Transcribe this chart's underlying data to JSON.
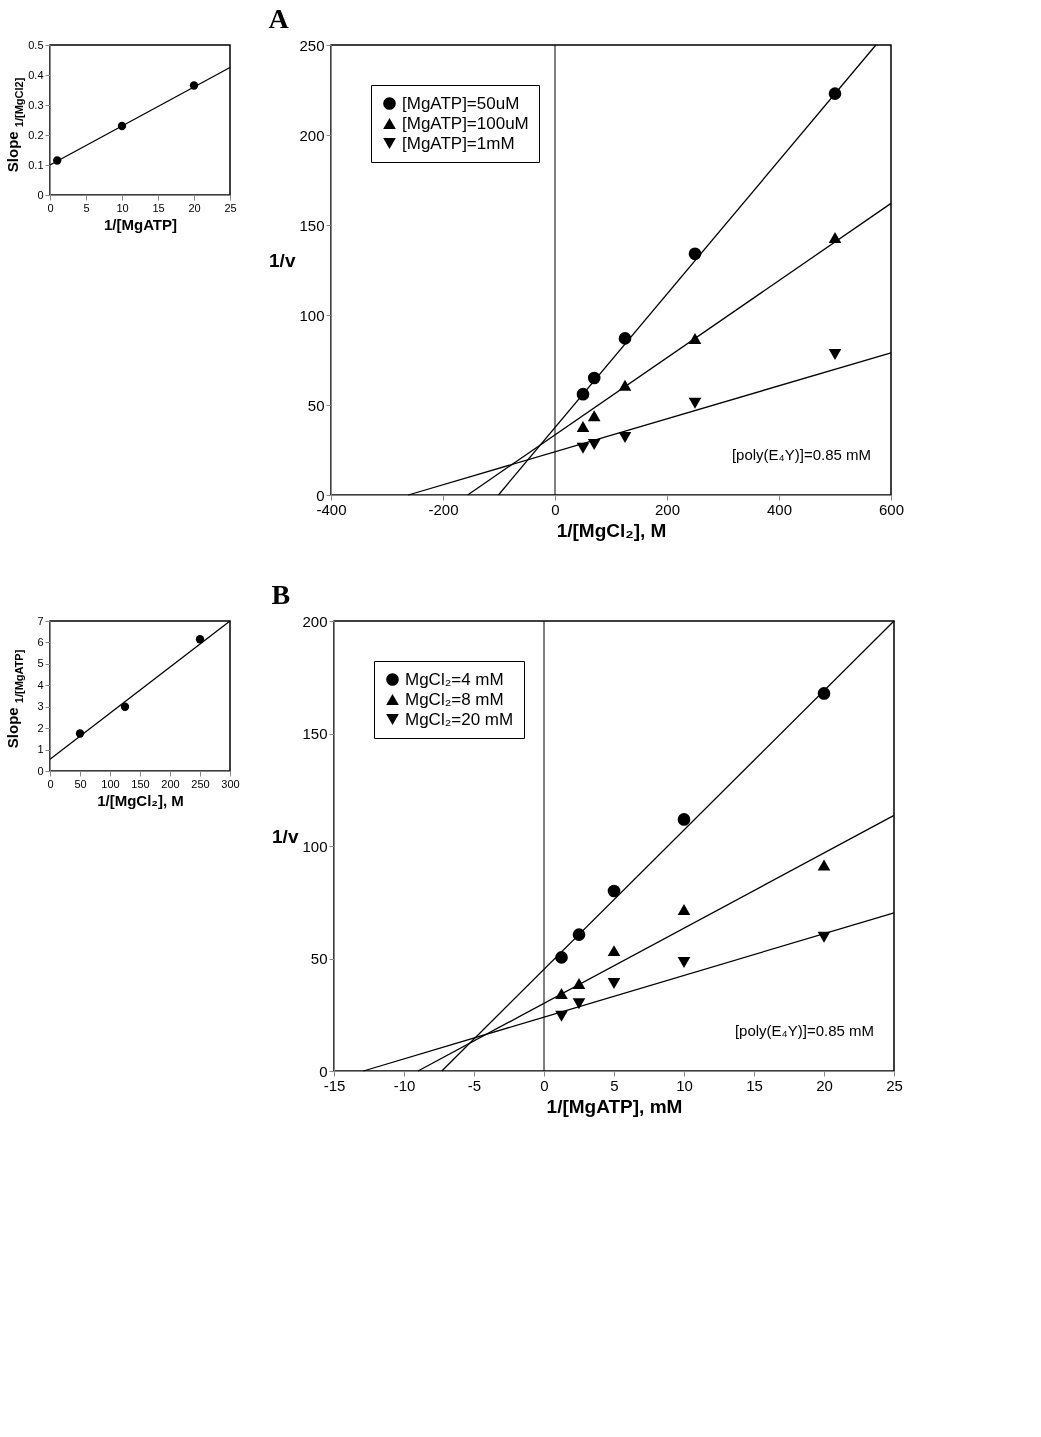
{
  "chart_data": [
    {
      "type": "scatter",
      "title": "A",
      "xlabel": "1/[MgCl₂], M",
      "ylabel": "1/v",
      "xlim": [
        -400,
        600
      ],
      "ylim": [
        0,
        250
      ],
      "xticks": [
        -400,
        -200,
        0,
        200,
        400,
        600
      ],
      "yticks": [
        0,
        50,
        100,
        150,
        200,
        250
      ],
      "grid": false,
      "legend": "top left",
      "series": [
        {
          "name": "[MgATP]=50uM",
          "color": "#000000",
          "marker": "circle",
          "x": [
            50,
            70,
            125,
            250,
            500
          ],
          "values": [
            56,
            65,
            87,
            134,
            223
          ]
        },
        {
          "name": "[MgATP]=100uM",
          "color": "#000000",
          "marker": "triangle",
          "x": [
            50,
            70,
            125,
            250,
            500
          ],
          "values": [
            38,
            44,
            61,
            87,
            143
          ]
        },
        {
          "name": "[MgATP]=1mM",
          "color": "#000000",
          "marker": "triangle-down",
          "x": [
            50,
            70,
            125,
            250,
            500
          ],
          "values": [
            26,
            28,
            32,
            51,
            78
          ]
        },
        {
          "type": "line",
          "color": "#000000",
          "x": [
            -101,
            573
          ],
          "values": [
            0,
            250
          ]
        },
        {
          "type": "line",
          "color": "#000000",
          "x": [
            -156,
            600
          ],
          "values": [
            0,
            162
          ]
        },
        {
          "type": "line",
          "color": "#000000",
          "x": [
            -262,
            600
          ],
          "values": [
            0,
            79
          ]
        }
      ],
      "ref_lines": [
        {
          "axis": "x",
          "value": 0,
          "color": "#000000"
        }
      ],
      "annotations": [
        "[poly(E₄Y)]=0.85 mM"
      ]
    },
    {
      "type": "scatter",
      "xlabel": "1/[MgATP]",
      "ylabel": "Slope$_{1/[MgCl2]}$",
      "xlim": [
        0,
        25
      ],
      "ylim": [
        0,
        0.5
      ],
      "xticks": [
        0,
        5,
        10,
        15,
        20,
        25
      ],
      "yticks": [
        0,
        0.1,
        0.2,
        0.3,
        0.4,
        0.5
      ],
      "grid": false,
      "series": [
        {
          "color": "#000000",
          "marker": "circle",
          "x": [
            1,
            10,
            20
          ],
          "values": [
            0.115,
            0.23,
            0.365
          ]
        },
        {
          "type": "line",
          "color": "#000000",
          "x": [
            0,
            25
          ],
          "values": [
            0.1,
            0.425
          ]
        }
      ]
    },
    {
      "type": "scatter",
      "title": "B",
      "xlabel": "1/[MgATP], mM",
      "ylabel": "1/v",
      "xlim": [
        -15,
        25
      ],
      "ylim": [
        0,
        200
      ],
      "xticks": [
        -15,
        -10,
        -5,
        0,
        5,
        10,
        15,
        20,
        25
      ],
      "yticks": [
        0,
        50,
        100,
        150,
        200
      ],
      "grid": false,
      "legend": "top left",
      "series": [
        {
          "name": "MgCl₂=4 mM",
          "color": "#000000",
          "marker": "circle",
          "x": [
            1.25,
            2.5,
            5,
            10,
            20
          ],
          "values": [
            50.5,
            60.6,
            80,
            111.8,
            167.8
          ]
        },
        {
          "name": "MgCl₂=8 mM",
          "color": "#000000",
          "marker": "triangle",
          "x": [
            1.25,
            2.5,
            5,
            10,
            20
          ],
          "values": [
            34.4,
            38.9,
            53.5,
            71.8,
            91.6
          ]
        },
        {
          "name": "MgCl₂=20 mM",
          "color": "#000000",
          "marker": "triangle-down",
          "x": [
            1.25,
            2.5,
            5,
            10,
            20
          ],
          "values": [
            24.3,
            29.9,
            38.9,
            48.2,
            59.4
          ]
        },
        {
          "type": "line",
          "color": "#000000",
          "x": [
            -7.3,
            25
          ],
          "values": [
            0,
            200
          ]
        },
        {
          "type": "line",
          "color": "#000000",
          "x": [
            -9,
            25
          ],
          "values": [
            0,
            113.6
          ]
        },
        {
          "type": "line",
          "color": "#000000",
          "x": [
            -12.9,
            25
          ],
          "values": [
            0,
            70.3
          ]
        }
      ],
      "ref_lines": [
        {
          "axis": "x",
          "value": 0,
          "color": "#000000"
        }
      ],
      "annotations": [
        "[poly(E₄Y)]=0.85 mM"
      ]
    },
    {
      "type": "scatter",
      "xlabel": "1/[MgCl₂], M",
      "ylabel": "Slope$_{1/[MgATP]}$",
      "xlim": [
        0,
        300
      ],
      "ylim": [
        0,
        7
      ],
      "xticks": [
        0,
        50,
        100,
        150,
        200,
        250,
        300
      ],
      "yticks": [
        0,
        1,
        2,
        3,
        4,
        5,
        6,
        7
      ],
      "grid": false,
      "series": [
        {
          "color": "#000000",
          "marker": "circle",
          "x": [
            50,
            125,
            250
          ],
          "values": [
            1.75,
            3.0,
            6.15
          ]
        },
        {
          "type": "line",
          "color": "#000000",
          "x": [
            0,
            300
          ],
          "values": [
            0.55,
            7.0
          ]
        }
      ]
    }
  ]
}
